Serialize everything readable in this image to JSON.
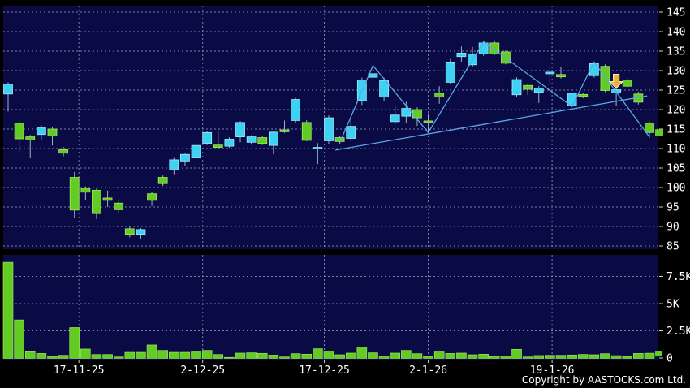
{
  "page": {
    "copyright": "Copyright by AASTOCKS.com Ltd."
  },
  "chart_data": {
    "type": "candlestick",
    "title": "",
    "legend_position": "none",
    "grid": "dashed",
    "price_axis": {
      "side": "right",
      "min": 85,
      "max": 145,
      "tick_labels": [
        "145",
        "140",
        "135",
        "130",
        "125",
        "120",
        "115",
        "110",
        "105",
        "100",
        "95",
        "90",
        "85"
      ],
      "tick_values": [
        145,
        140,
        135,
        130,
        125,
        120,
        115,
        110,
        105,
        100,
        95,
        90,
        85
      ]
    },
    "volume_axis": {
      "side": "right",
      "ticks": [
        {
          "value": 7500,
          "label": "7.5K"
        },
        {
          "value": 5000,
          "label": "5K"
        },
        {
          "value": 2500,
          "label": "2.5K"
        },
        {
          "value": 0,
          "label": "0"
        }
      ]
    },
    "x_tick_labels": [
      {
        "pos": 6.4,
        "label": "17-11-25"
      },
      {
        "pos": 17.6,
        "label": "2-12-25"
      },
      {
        "pos": 28.6,
        "label": "17-12-25"
      },
      {
        "pos": 38.0,
        "label": "2-1-26"
      },
      {
        "pos": 49.2,
        "label": "19-1-26"
      }
    ],
    "candles_ohlc": [
      [
        124.0,
        127.0,
        119.5,
        126.5
      ],
      [
        116.5,
        117.2,
        109.0,
        112.5
      ],
      [
        113.0,
        113.5,
        107.5,
        112.2
      ],
      [
        113.6,
        116.0,
        112.0,
        115.3
      ],
      [
        115.0,
        115.5,
        110.8,
        113.2
      ],
      [
        109.7,
        110.4,
        108.0,
        108.8
      ],
      [
        102.6,
        104.0,
        92.2,
        94.2
      ],
      [
        99.8,
        100.3,
        96.7,
        98.8
      ],
      [
        99.3,
        99.8,
        91.9,
        93.3
      ],
      [
        97.3,
        99.2,
        95.0,
        96.7
      ],
      [
        96.0,
        96.6,
        93.5,
        94.3
      ],
      [
        89.4,
        90.2,
        87.2,
        88.0
      ],
      [
        88.0,
        89.6,
        86.9,
        89.2
      ],
      [
        98.4,
        98.9,
        95.3,
        96.7
      ],
      [
        102.6,
        103.1,
        100.4,
        101.0
      ],
      [
        104.7,
        107.6,
        103.4,
        107.1
      ],
      [
        106.8,
        108.7,
        105.6,
        108.5
      ],
      [
        107.6,
        111.6,
        107.0,
        110.8
      ],
      [
        111.3,
        114.5,
        110.9,
        114.1
      ],
      [
        110.9,
        114.6,
        110.0,
        110.3
      ],
      [
        110.6,
        112.9,
        110.2,
        112.4
      ],
      [
        113.0,
        117.0,
        111.6,
        116.7
      ],
      [
        111.6,
        113.4,
        111.0,
        113.0
      ],
      [
        112.8,
        113.3,
        110.9,
        111.3
      ],
      [
        110.8,
        114.6,
        108.5,
        114.2
      ],
      [
        114.8,
        117.2,
        114.0,
        114.3
      ],
      [
        117.2,
        123.0,
        116.6,
        122.6
      ],
      [
        116.7,
        117.3,
        111.9,
        112.1
      ],
      [
        109.9,
        111.4,
        106.0,
        110.3
      ],
      [
        112.0,
        118.5,
        111.2,
        117.9
      ],
      [
        112.8,
        113.3,
        111.2,
        111.8
      ],
      [
        112.6,
        117.3,
        112.0,
        115.7
      ],
      [
        122.3,
        128.2,
        121.2,
        127.6
      ],
      [
        128.3,
        131.3,
        127.4,
        129.2
      ],
      [
        123.2,
        128.2,
        122.3,
        127.4
      ],
      [
        116.9,
        121.0,
        116.2,
        118.6
      ],
      [
        118.3,
        122.0,
        116.5,
        120.3
      ],
      [
        120.0,
        120.6,
        115.8,
        117.9
      ],
      [
        117.1,
        119.0,
        114.1,
        116.8
      ],
      [
        124.2,
        126.0,
        121.5,
        123.2
      ],
      [
        127.0,
        133.0,
        126.5,
        132.2
      ],
      [
        133.6,
        136.2,
        132.3,
        134.5
      ],
      [
        131.5,
        136.1,
        131.0,
        134.3
      ],
      [
        134.3,
        137.4,
        133.8,
        137.1
      ],
      [
        137.1,
        137.6,
        134.0,
        134.3
      ],
      [
        134.8,
        135.3,
        131.6,
        131.9
      ],
      [
        123.8,
        128.3,
        123.2,
        127.7
      ],
      [
        126.2,
        126.7,
        123.8,
        125.2
      ],
      [
        124.4,
        126.1,
        121.7,
        125.5
      ],
      [
        129.4,
        131.1,
        126.3,
        129.6
      ],
      [
        129.0,
        131.0,
        128.0,
        128.4
      ],
      [
        121.0,
        124.3,
        120.7,
        124.2
      ],
      [
        123.9,
        124.4,
        122.9,
        123.4
      ],
      [
        128.7,
        132.0,
        128.2,
        131.8
      ],
      [
        131.1,
        131.6,
        124.5,
        124.9
      ],
      [
        124.3,
        125.5,
        121.0,
        125.1
      ],
      [
        127.6,
        128.1,
        125.3,
        126.0
      ],
      [
        124.0,
        124.6,
        121.3,
        121.9
      ],
      [
        116.5,
        117.0,
        112.7,
        114.1
      ]
    ],
    "volumes": [
      8800,
      3500,
      575,
      420,
      150,
      250,
      2800,
      825,
      320,
      320,
      100,
      520,
      520,
      1200,
      700,
      520,
      520,
      560,
      700,
      320,
      60,
      450,
      480,
      430,
      270,
      100,
      400,
      350,
      850,
      650,
      300,
      450,
      1000,
      480,
      200,
      450,
      700,
      400,
      150,
      560,
      420,
      450,
      300,
      350,
      150,
      200,
      800,
      100,
      230,
      250,
      250,
      280,
      330,
      300,
      400,
      220,
      150,
      420,
      440
    ],
    "overlays": {
      "support_trendline": {
        "points": [
          [
            29.6,
            109.6
          ],
          [
            57.8,
            123.5
          ]
        ]
      },
      "zigzag_indicator": {
        "points": [
          [
            30,
            111.5
          ],
          [
            33,
            131.3
          ],
          [
            38,
            114.1
          ],
          [
            43,
            137.4
          ],
          [
            51,
            120.8
          ],
          [
            53,
            132.2
          ],
          [
            58,
            113.0
          ]
        ]
      }
    },
    "marker": {
      "shape": "down-arrow",
      "candle_index": 55
    },
    "last_price": 114.1,
    "last_volume": 440,
    "colors": {
      "up": "#3dd2f2",
      "up_edge": "#9ceaff",
      "down": "#63cc22",
      "down_edge": "#a8e86a",
      "wick": "#9fb0c8",
      "grid": "#7b7fae",
      "pane_bg": "#0a0a45",
      "background": "#000000",
      "axis_text": "#ffffff",
      "trendline": "#58a8e8",
      "marker_fill": "#e6b33c",
      "marker_stroke": "#f6eaa0",
      "price_flag": "#63cc22"
    }
  }
}
